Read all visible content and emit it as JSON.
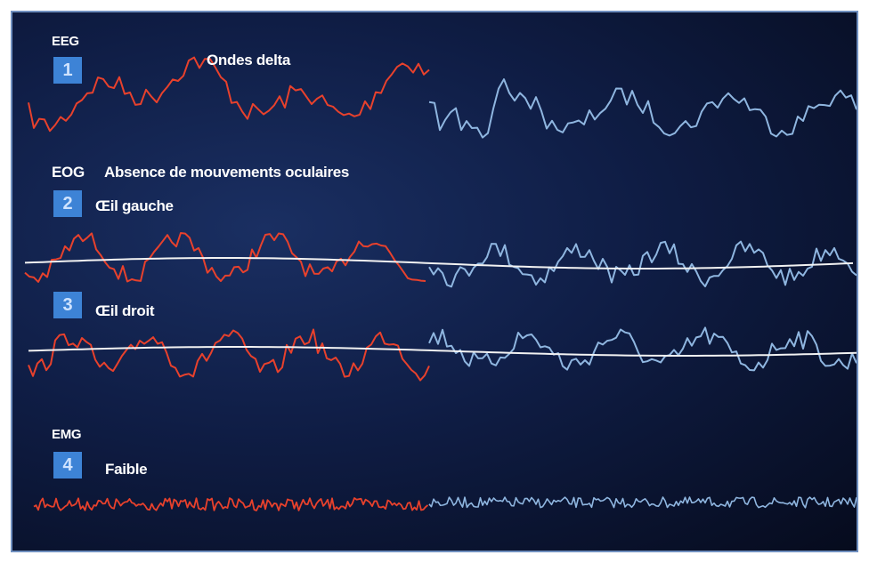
{
  "channels": {
    "eeg": {
      "label": "EEG",
      "badge": "1",
      "caption": "Ondes delta"
    },
    "eog": {
      "label": "EOG",
      "caption": "Absence de mouvements oculaires"
    },
    "left_eye": {
      "badge": "2",
      "caption": "Œil gauche"
    },
    "right_eye": {
      "badge": "3",
      "caption": "Œil droit"
    },
    "emg": {
      "label": "EMG",
      "badge": "4",
      "caption": "Faible"
    }
  },
  "colors": {
    "trace_red": "#e8412c",
    "trace_blue": "#8fb6e0",
    "baseline": "#f2f2f2",
    "badge": "#3d83d6",
    "background": "#0f1d45"
  }
}
